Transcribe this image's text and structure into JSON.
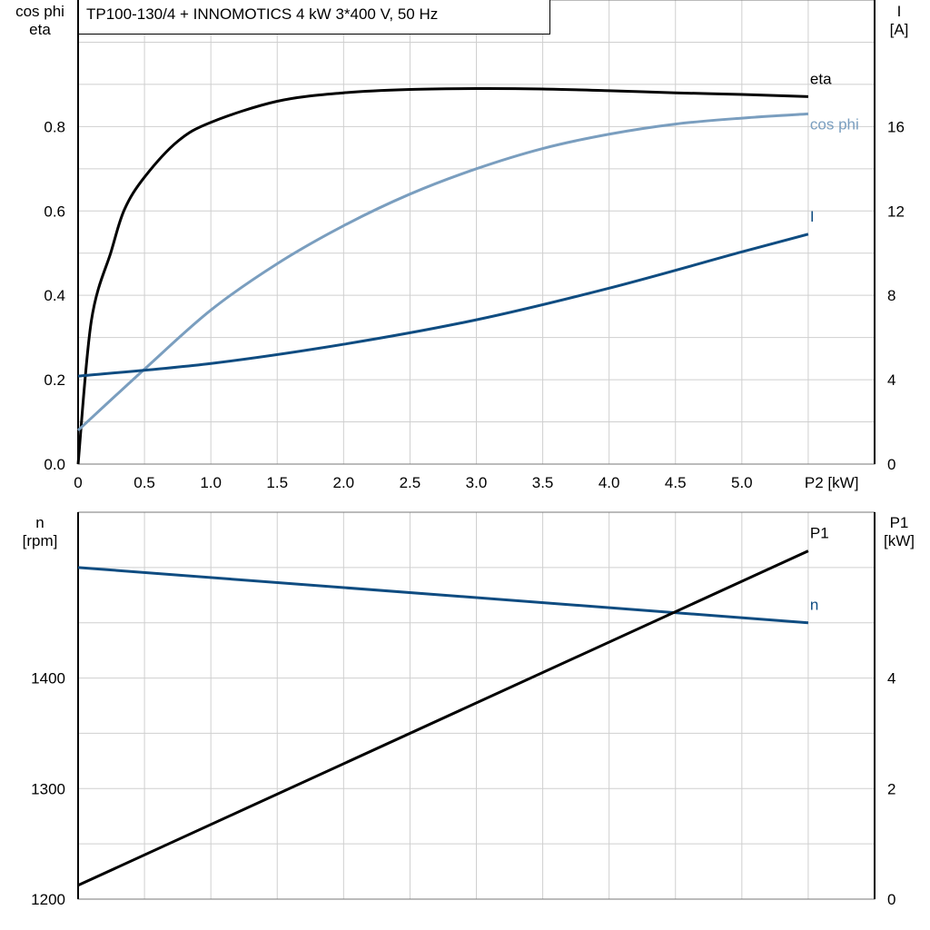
{
  "title": "TP100-130/4 + INNOMOTICS   4 kW   3*400 V, 50 Hz",
  "chart_data": [
    {
      "type": "line",
      "xlabel": "P2 [kW]",
      "xlim": [
        0,
        6
      ],
      "x_ticks": [
        "0",
        "0.5",
        "1.0",
        "1.5",
        "2.0",
        "2.5",
        "3.0",
        "3.5",
        "4.0",
        "4.5",
        "5.0"
      ],
      "ylabel_left": [
        "cos phi",
        "eta"
      ],
      "ylim_left": [
        0,
        1.1
      ],
      "y_ticks_left": [
        "0.0",
        "0.2",
        "0.4",
        "0.6",
        "0.8"
      ],
      "ylabel_right": [
        "I",
        "[A]"
      ],
      "ylim_right": [
        0,
        22
      ],
      "y_ticks_right": [
        "0",
        "4",
        "8",
        "12",
        "16"
      ],
      "grid": true,
      "series": [
        {
          "name": "eta",
          "axis": "left",
          "color": "#000000",
          "x": [
            0,
            0.1,
            0.25,
            0.35,
            0.5,
            0.75,
            1.0,
            1.5,
            2.0,
            2.5,
            3.0,
            3.5,
            4.0,
            4.5,
            5.0,
            5.5
          ],
          "y": [
            0,
            0.34,
            0.505,
            0.604,
            0.68,
            0.765,
            0.81,
            0.86,
            0.88,
            0.888,
            0.89,
            0.889,
            0.885,
            0.88,
            0.876,
            0.871
          ]
        },
        {
          "name": "cos phi",
          "axis": "left",
          "color": "#7a9ebf",
          "x": [
            0,
            0.5,
            1.0,
            1.5,
            2.0,
            2.5,
            3.0,
            3.5,
            4.0,
            4.5,
            5.0,
            5.5
          ],
          "y": [
            0.08,
            0.225,
            0.365,
            0.475,
            0.565,
            0.64,
            0.7,
            0.748,
            0.782,
            0.806,
            0.82,
            0.83
          ]
        },
        {
          "name": "I",
          "axis": "right",
          "color": "#0f4c81",
          "x": [
            0,
            1.0,
            2.0,
            3.0,
            4.0,
            5.0,
            5.5
          ],
          "y": [
            4.17,
            4.77,
            5.68,
            6.84,
            8.34,
            10.06,
            10.9
          ]
        }
      ]
    },
    {
      "type": "line",
      "xlim": [
        0,
        6
      ],
      "ylabel_left": [
        "n",
        "[rpm]"
      ],
      "ylim_left": [
        1200,
        1550
      ],
      "y_ticks_left": [
        "1200",
        "1300",
        "1400"
      ],
      "ylabel_right": [
        "P1",
        "[kW]"
      ],
      "ylim_right": [
        0,
        7
      ],
      "y_ticks_right": [
        "0",
        "2",
        "4"
      ],
      "grid": true,
      "series": [
        {
          "name": "n",
          "axis": "left",
          "color": "#0f4c81",
          "x": [
            0,
            5.5
          ],
          "y": [
            1500,
            1450
          ]
        },
        {
          "name": "P1",
          "axis": "right",
          "color": "#000000",
          "x": [
            0,
            5.5
          ],
          "y": [
            0.25,
            6.3
          ]
        }
      ]
    }
  ]
}
